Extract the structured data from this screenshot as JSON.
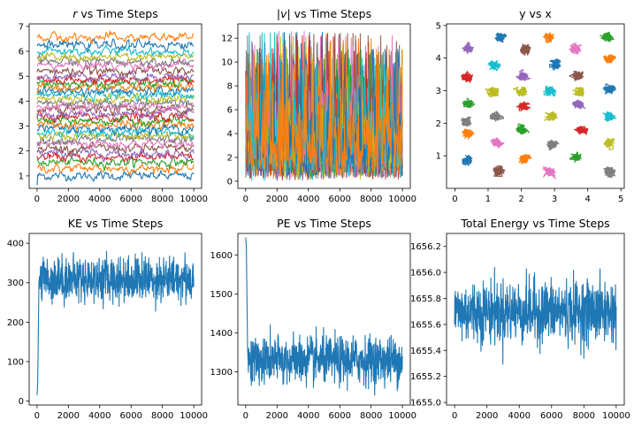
{
  "figure": {
    "background": "#ffffff"
  },
  "chart_data": [
    {
      "type": "line",
      "title_prefix": "r",
      "title_suffix": " vs Time Steps",
      "xlim": [
        -500,
        10500
      ],
      "ylim": [
        0.5,
        7.1
      ],
      "xticks": [
        0,
        2000,
        4000,
        6000,
        8000,
        10000
      ],
      "yticks": [
        1,
        2,
        3,
        4,
        5,
        6,
        7
      ],
      "series_levels": [
        1.0,
        1.3,
        1.55,
        1.75,
        1.9,
        2.1,
        2.3,
        2.45,
        2.6,
        2.75,
        2.9,
        3.05,
        3.2,
        3.35,
        3.5,
        3.65,
        3.8,
        3.95,
        4.1,
        4.25,
        4.4,
        4.55,
        4.7,
        4.85,
        5.0,
        5.2,
        5.45,
        5.6,
        5.75,
        6.0,
        6.25,
        6.55
      ],
      "series_noise": 0.12,
      "note": "32 noisy trajectories, each fluctuating around a roughly constant level"
    },
    {
      "type": "line",
      "title_prefix": "|",
      "title_italic": "v",
      "title_suffix": "| vs Time Steps",
      "xlim": [
        -500,
        10500
      ],
      "ylim": [
        -0.6,
        13.2
      ],
      "xticks": [
        0,
        2000,
        4000,
        6000,
        8000,
        10000
      ],
      "yticks": [
        0,
        2,
        4,
        6,
        8,
        10,
        12
      ],
      "series_count": 32,
      "value_range": [
        0,
        12.6
      ],
      "typical_range": [
        0.5,
        10.5
      ]
    },
    {
      "type": "scatter",
      "title": "y vs x",
      "xlim": [
        -0.25,
        5.1
      ],
      "ylim": [
        0.0,
        5.05
      ],
      "xticks": [
        0,
        1,
        2,
        3,
        4,
        5
      ],
      "yticks": [
        1,
        2,
        3,
        4,
        5
      ],
      "clusters": [
        {
          "x": 0.4,
          "y": 4.3,
          "color": "#9467bd"
        },
        {
          "x": 1.35,
          "y": 4.65,
          "color": "#1f77b4"
        },
        {
          "x": 2.1,
          "y": 4.25,
          "color": "#8c564b"
        },
        {
          "x": 2.85,
          "y": 4.65,
          "color": "#ff7f0e"
        },
        {
          "x": 3.65,
          "y": 4.3,
          "color": "#e377c2"
        },
        {
          "x": 4.6,
          "y": 4.65,
          "color": "#2ca02c"
        },
        {
          "x": 0.35,
          "y": 3.4,
          "color": "#d62728"
        },
        {
          "x": 1.2,
          "y": 3.75,
          "color": "#17becf"
        },
        {
          "x": 2.05,
          "y": 3.45,
          "color": "#9467bd"
        },
        {
          "x": 3.05,
          "y": 3.8,
          "color": "#1f77b4"
        },
        {
          "x": 3.7,
          "y": 3.45,
          "color": "#8c564b"
        },
        {
          "x": 4.65,
          "y": 4.0,
          "color": "#ff7f0e"
        },
        {
          "x": 0.4,
          "y": 2.6,
          "color": "#2ca02c"
        },
        {
          "x": 1.15,
          "y": 2.95,
          "color": "#bcbd22"
        },
        {
          "x": 2.0,
          "y": 2.95,
          "color": "#bcbd22"
        },
        {
          "x": 2.85,
          "y": 3.0,
          "color": "#17becf"
        },
        {
          "x": 3.75,
          "y": 2.95,
          "color": "#bcbd22"
        },
        {
          "x": 4.65,
          "y": 3.05,
          "color": "#1f77b4"
        },
        {
          "x": 0.35,
          "y": 2.05,
          "color": "#7f7f7f"
        },
        {
          "x": 1.25,
          "y": 2.2,
          "color": "#7f7f7f"
        },
        {
          "x": 2.05,
          "y": 2.5,
          "color": "#d62728"
        },
        {
          "x": 2.9,
          "y": 2.2,
          "color": "#bcbd22"
        },
        {
          "x": 3.75,
          "y": 2.6,
          "color": "#9467bd"
        },
        {
          "x": 4.65,
          "y": 2.2,
          "color": "#17becf"
        },
        {
          "x": 0.4,
          "y": 1.7,
          "color": "#ff7f0e"
        },
        {
          "x": 1.25,
          "y": 1.4,
          "color": "#e377c2"
        },
        {
          "x": 2.0,
          "y": 1.8,
          "color": "#2ca02c"
        },
        {
          "x": 2.95,
          "y": 1.35,
          "color": "#7f7f7f"
        },
        {
          "x": 3.8,
          "y": 1.8,
          "color": "#d62728"
        },
        {
          "x": 4.65,
          "y": 1.4,
          "color": "#bcbd22"
        },
        {
          "x": 0.4,
          "y": 0.85,
          "color": "#1f77b4"
        },
        {
          "x": 1.3,
          "y": 0.55,
          "color": "#8c564b"
        },
        {
          "x": 2.1,
          "y": 0.9,
          "color": "#ff7f0e"
        },
        {
          "x": 2.85,
          "y": 0.5,
          "color": "#e377c2"
        },
        {
          "x": 3.65,
          "y": 0.95,
          "color": "#2ca02c"
        },
        {
          "x": 4.65,
          "y": 0.5,
          "color": "#7f7f7f"
        }
      ]
    },
    {
      "type": "line",
      "title": "KE vs Time Steps",
      "xlim": [
        -500,
        10500
      ],
      "ylim": [
        -10,
        425
      ],
      "xticks": [
        0,
        2000,
        4000,
        6000,
        8000,
        10000
      ],
      "yticks": [
        0,
        100,
        200,
        300,
        400
      ],
      "initial_values": [
        15,
        45,
        160,
        300
      ],
      "steady_mean": 310,
      "steady_noise": 28,
      "steady_range": [
        200,
        420
      ]
    },
    {
      "type": "line",
      "title": "PE vs Time Steps",
      "xlim": [
        -500,
        10500
      ],
      "ylim": [
        1215,
        1655
      ],
      "xticks": [
        0,
        2000,
        4000,
        6000,
        8000,
        10000
      ],
      "yticks": [
        1300,
        1400,
        1500,
        1600
      ],
      "initial_values": [
        1645,
        1620,
        1490,
        1360
      ],
      "steady_mean": 1330,
      "steady_noise": 30,
      "steady_range": [
        1240,
        1460
      ]
    },
    {
      "type": "line",
      "title": "Total Energy vs Time Steps",
      "xlim": [
        -500,
        10500
      ],
      "ylim": [
        1654.98,
        1656.3
      ],
      "xticks": [
        0,
        2000,
        4000,
        6000,
        8000,
        10000
      ],
      "yticks": [
        1655.0,
        1655.2,
        1655.4,
        1655.6,
        1655.8,
        1656.0,
        1656.2
      ],
      "ytick_labels": [
        "1655.0",
        "1655.2",
        "1655.4",
        "1655.6",
        "1655.8",
        "1656.0",
        "1656.2"
      ],
      "steady_mean": 1655.7,
      "steady_noise": 0.12,
      "steady_range": [
        1655.03,
        1656.27
      ]
    }
  ]
}
